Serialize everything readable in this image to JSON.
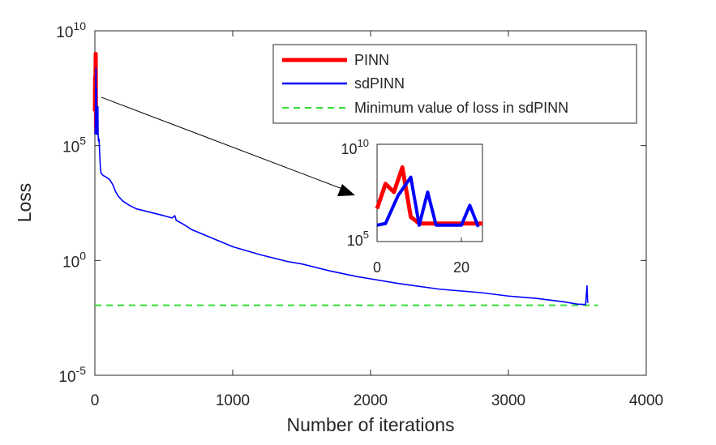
{
  "chart_data": {
    "type": "line",
    "xlabel": "Number of iterations",
    "ylabel": "Loss",
    "yscale": "log",
    "xlim": [
      0,
      4000
    ],
    "ylim_exp": [
      -5,
      10
    ],
    "x_ticks": [
      {
        "value": 0,
        "label": "0"
      },
      {
        "value": 1000,
        "label": "1000"
      },
      {
        "value": 2000,
        "label": "2000"
      },
      {
        "value": 3000,
        "label": "3000"
      },
      {
        "value": 4000,
        "label": "4000"
      }
    ],
    "y_ticks": [
      {
        "exp": 10,
        "base": "10",
        "sup": "10"
      },
      {
        "exp": 5,
        "base": "10",
        "sup": "5"
      },
      {
        "exp": 0,
        "base": "10",
        "sup": "0"
      },
      {
        "exp": -5,
        "base": "10",
        "sup": "-5"
      }
    ],
    "series": [
      {
        "name": "PINN",
        "color": "#ff0000",
        "style": "solid",
        "width": "thick",
        "points": [
          [
            0,
            6.5
          ],
          [
            2,
            8.0
          ],
          [
            4,
            7.5
          ],
          [
            6,
            9.0
          ],
          [
            8,
            6.0
          ],
          [
            10,
            5.6
          ],
          [
            14,
            5.6
          ],
          [
            25,
            5.6
          ]
        ]
      },
      {
        "name": "sdPINN",
        "color": "#0000ff",
        "style": "solid",
        "width": "thin",
        "points": [
          [
            0,
            5.5
          ],
          [
            2,
            5.6
          ],
          [
            5,
            7.3
          ],
          [
            8,
            8.4
          ],
          [
            10,
            5.5
          ],
          [
            12,
            7.5
          ],
          [
            14,
            5.5
          ],
          [
            17,
            5.5
          ],
          [
            20,
            5.5
          ],
          [
            22,
            6.7
          ],
          [
            24,
            5.4
          ],
          [
            26,
            5.2
          ],
          [
            30,
            5.3
          ],
          [
            40,
            4.0
          ],
          [
            45,
            3.8
          ],
          [
            60,
            3.7
          ],
          [
            90,
            3.6
          ],
          [
            110,
            3.5
          ],
          [
            130,
            3.3
          ],
          [
            150,
            3.0
          ],
          [
            170,
            2.8
          ],
          [
            200,
            2.6
          ],
          [
            250,
            2.4
          ],
          [
            300,
            2.25
          ],
          [
            400,
            2.1
          ],
          [
            500,
            1.95
          ],
          [
            560,
            1.85
          ],
          [
            580,
            1.95
          ],
          [
            590,
            1.75
          ],
          [
            650,
            1.55
          ],
          [
            700,
            1.35
          ],
          [
            800,
            1.1
          ],
          [
            900,
            0.85
          ],
          [
            1000,
            0.6
          ],
          [
            1200,
            0.25
          ],
          [
            1400,
            -0.05
          ],
          [
            1500,
            -0.15
          ],
          [
            1700,
            -0.45
          ],
          [
            1900,
            -0.7
          ],
          [
            2000,
            -0.8
          ],
          [
            2200,
            -1.0
          ],
          [
            2500,
            -1.25
          ],
          [
            2800,
            -1.4
          ],
          [
            3000,
            -1.55
          ],
          [
            3200,
            -1.65
          ],
          [
            3400,
            -1.8
          ],
          [
            3500,
            -1.9
          ],
          [
            3560,
            -1.92
          ],
          [
            3570,
            -1.1
          ],
          [
            3575,
            -1.85
          ]
        ]
      },
      {
        "name": "Minimum value of loss in sdPINN",
        "color": "#33dd33",
        "style": "dashed",
        "value_exp": -1.95,
        "x_range": [
          0,
          3650
        ]
      }
    ],
    "legend": {
      "position": "top-right",
      "entries": [
        "PINN",
        "sdPINN",
        "Minimum value of loss in sdPINN"
      ]
    },
    "inset": {
      "xlim": [
        0,
        25
      ],
      "ylim_exp": [
        5,
        10
      ],
      "x_ticks": [
        {
          "value": 0,
          "label": "0"
        },
        {
          "value": 20,
          "label": "20"
        }
      ],
      "y_ticks": [
        {
          "exp": 10,
          "base": "10",
          "sup": "10"
        },
        {
          "exp": 5,
          "base": "10",
          "sup": "5"
        }
      ],
      "annotation": "arrow from early iterations to inset (zoom-in)"
    }
  }
}
